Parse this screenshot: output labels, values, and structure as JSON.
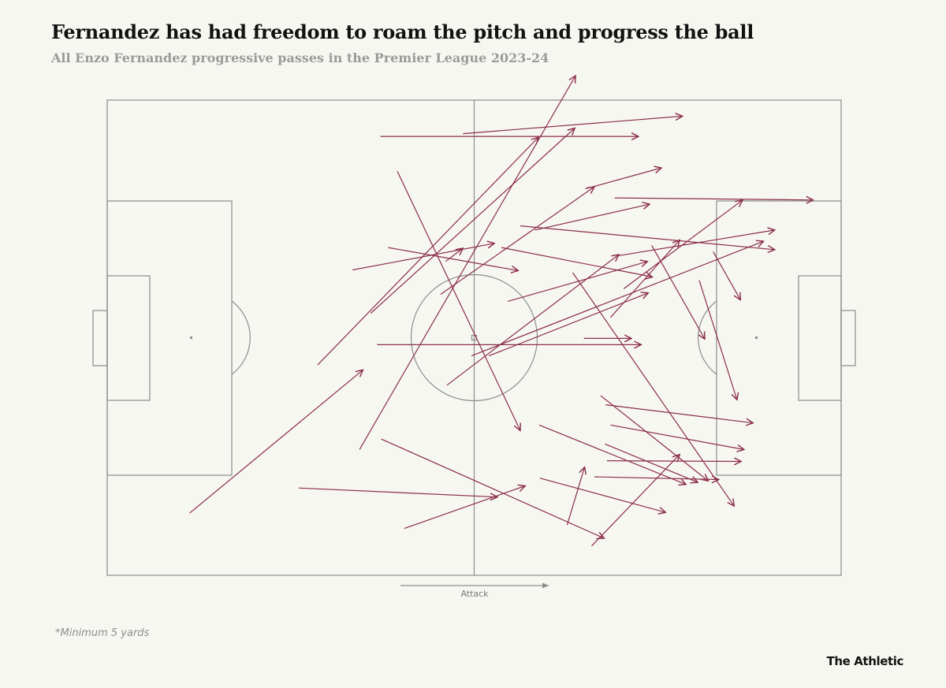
{
  "header": {
    "title": "Fernandez has had freedom to roam the pitch and progress the ball",
    "subtitle": "All Enzo Fernandez progressive passes in the Premier League 2023-24"
  },
  "footer": {
    "footnote": "*Minimum 5 yards",
    "brand": "The Athletic"
  },
  "colors": {
    "background": "#f7f7f2",
    "pitch_lines": "#8c8c8c",
    "pass": "#8b2e4a"
  },
  "chart_data": {
    "type": "pass-map",
    "xlim": [
      0,
      105
    ],
    "ylim": [
      0,
      68
    ],
    "attack_direction": "left-to-right",
    "attack_label": "Attack",
    "passes": [
      {
        "x1": 11.8,
        "y1": 59.1,
        "x2": 36.6,
        "y2": 38.6
      },
      {
        "x1": 27.4,
        "y1": 55.5,
        "x2": 55.8,
        "y2": 56.8
      },
      {
        "x1": 39.2,
        "y1": 48.5,
        "x2": 71.1,
        "y2": 62.7
      },
      {
        "x1": 42.5,
        "y1": 61.3,
        "x2": 59.8,
        "y2": 55.2
      },
      {
        "x1": 36.1,
        "y1": 50.0,
        "x2": 67.0,
        "y2": -3.5
      },
      {
        "x1": 30.1,
        "y1": 37.9,
        "x2": 61.7,
        "y2": 5.3
      },
      {
        "x1": 38.6,
        "y1": 35.0,
        "x2": 76.4,
        "y2": 35.0
      },
      {
        "x1": 37.7,
        "y1": 30.5,
        "x2": 66.9,
        "y2": 4.0
      },
      {
        "x1": 35.1,
        "y1": 24.3,
        "x2": 55.4,
        "y2": 20.5
      },
      {
        "x1": 40.2,
        "y1": 21.1,
        "x2": 58.8,
        "y2": 24.4
      },
      {
        "x1": 41.5,
        "y1": 10.2,
        "x2": 59.1,
        "y2": 47.3
      },
      {
        "x1": 48.4,
        "y1": 23.1,
        "x2": 50.9,
        "y2": 21.2
      },
      {
        "x1": 39.1,
        "y1": 5.2,
        "x2": 76.0,
        "y2": 5.2
      },
      {
        "x1": 50.9,
        "y1": 4.8,
        "x2": 82.3,
        "y2": 2.3
      },
      {
        "x1": 47.7,
        "y1": 27.8,
        "x2": 69.7,
        "y2": 12.4
      },
      {
        "x1": 48.6,
        "y1": 40.8,
        "x2": 73.2,
        "y2": 22.1
      },
      {
        "x1": 52.1,
        "y1": 36.6,
        "x2": 93.9,
        "y2": 20.2
      },
      {
        "x1": 54.6,
        "y1": 36.6,
        "x2": 77.4,
        "y2": 27.6
      },
      {
        "x1": 57.3,
        "y1": 28.8,
        "x2": 77.3,
        "y2": 23.1
      },
      {
        "x1": 56.4,
        "y1": 21.1,
        "x2": 78.0,
        "y2": 25.3
      },
      {
        "x1": 59.1,
        "y1": 18.0,
        "x2": 95.5,
        "y2": 21.4
      },
      {
        "x1": 68.4,
        "y1": 12.7,
        "x2": 79.3,
        "y2": 9.7
      },
      {
        "x1": 61.9,
        "y1": 54.1,
        "x2": 79.9,
        "y2": 59.0
      },
      {
        "x1": 65.8,
        "y1": 60.8,
        "x2": 68.3,
        "y2": 52.5
      },
      {
        "x1": 69.3,
        "y1": 63.8,
        "x2": 81.9,
        "y2": 50.7
      },
      {
        "x1": 69.7,
        "y1": 53.9,
        "x2": 87.5,
        "y2": 54.3
      },
      {
        "x1": 71.5,
        "y1": 51.6,
        "x2": 90.7,
        "y2": 51.7
      },
      {
        "x1": 71.2,
        "y1": 49.2,
        "x2": 84.5,
        "y2": 54.7
      },
      {
        "x1": 72.0,
        "y1": 46.5,
        "x2": 91.1,
        "y2": 50.0
      },
      {
        "x1": 71.3,
        "y1": 43.6,
        "x2": 92.4,
        "y2": 46.2
      },
      {
        "x1": 70.6,
        "y1": 42.3,
        "x2": 86.0,
        "y2": 54.5
      },
      {
        "x1": 61.8,
        "y1": 46.5,
        "x2": 82.8,
        "y2": 55.0
      },
      {
        "x1": 66.6,
        "y1": 24.7,
        "x2": 89.7,
        "y2": 58.1
      },
      {
        "x1": 72.0,
        "y1": 31.1,
        "x2": 81.9,
        "y2": 20.0
      },
      {
        "x1": 73.0,
        "y1": 22.3,
        "x2": 95.5,
        "y2": 18.6
      },
      {
        "x1": 73.9,
        "y1": 27.0,
        "x2": 90.9,
        "y2": 14.3
      },
      {
        "x1": 72.6,
        "y1": 14.0,
        "x2": 101.0,
        "y2": 14.3
      },
      {
        "x1": 77.9,
        "y1": 20.8,
        "x2": 85.5,
        "y2": 34.2
      },
      {
        "x1": 84.7,
        "y1": 25.8,
        "x2": 90.1,
        "y2": 42.9
      },
      {
        "x1": 68.2,
        "y1": 34.1,
        "x2": 75.0,
        "y2": 34.1
      },
      {
        "x1": 86.7,
        "y1": 21.7,
        "x2": 90.6,
        "y2": 28.6
      },
      {
        "x1": 61.2,
        "y1": 18.6,
        "x2": 77.6,
        "y2": 14.9
      }
    ]
  }
}
